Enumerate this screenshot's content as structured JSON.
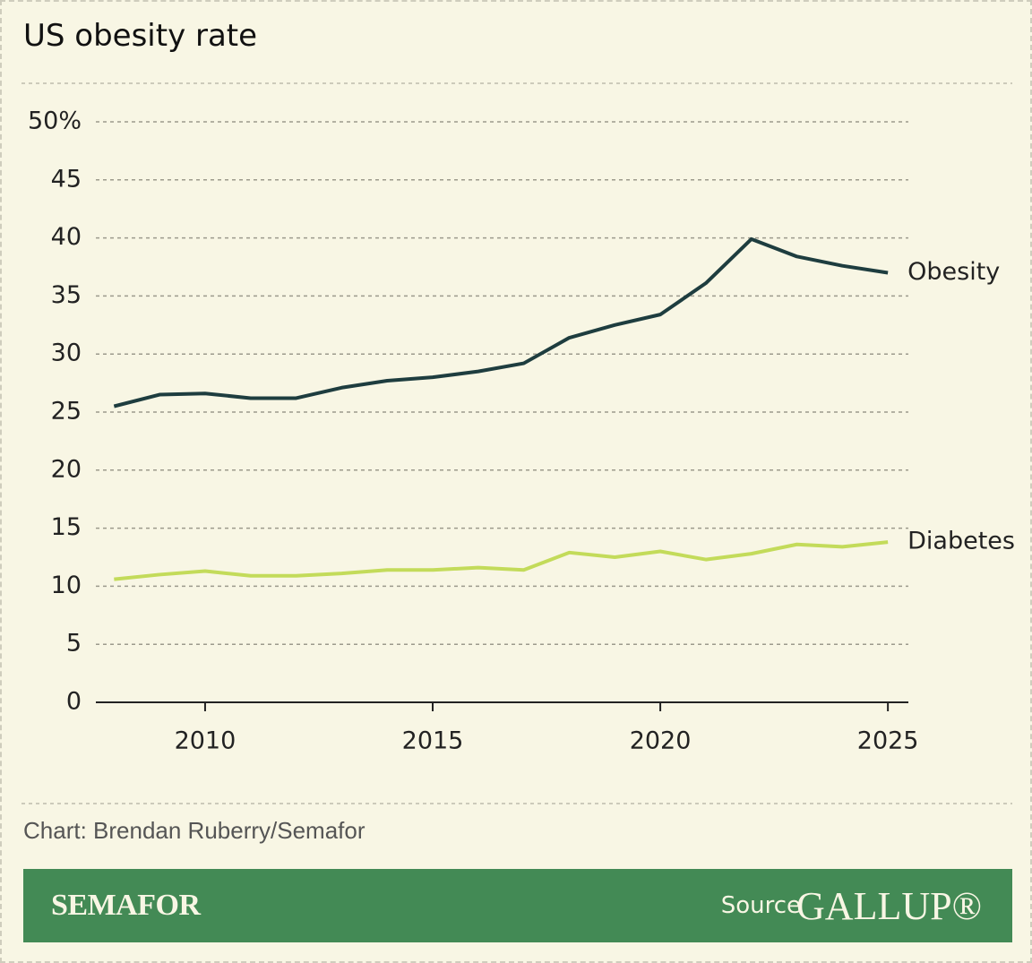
{
  "chart_data": {
    "type": "line",
    "title": "US obesity rate",
    "x": [
      2008,
      2009,
      2010,
      2011,
      2012,
      2013,
      2014,
      2015,
      2016,
      2017,
      2018,
      2019,
      2020,
      2021,
      2022,
      2023,
      2024,
      2025
    ],
    "series": [
      {
        "name": "Obesity",
        "color": "#1e3d3f",
        "values": [
          25.5,
          26.5,
          26.6,
          26.2,
          26.2,
          27.1,
          27.7,
          28.0,
          28.5,
          29.2,
          31.4,
          32.5,
          33.4,
          36.1,
          39.9,
          38.4,
          37.6,
          37.0
        ]
      },
      {
        "name": "Diabetes",
        "color": "#c3db5a",
        "values": [
          10.6,
          11.0,
          11.3,
          10.9,
          10.9,
          11.1,
          11.4,
          11.4,
          11.6,
          11.4,
          12.9,
          12.5,
          13.0,
          12.3,
          12.8,
          13.6,
          13.4,
          13.8
        ]
      }
    ],
    "xlim": [
      2007.6,
      2025.45
    ],
    "xticks": [
      2010,
      2015,
      2020,
      2025
    ],
    "ylim": [
      0,
      50
    ],
    "yticks": [
      0,
      5,
      10,
      15,
      20,
      25,
      30,
      35,
      40,
      45,
      {
        "value": 50,
        "label": "50%"
      }
    ],
    "grid": true
  },
  "credit": "Chart: Brendan Ruberry/Semafor",
  "footer": {
    "brand": "SEMAFOR",
    "source_label": "Source",
    "source": "GALLUP®"
  }
}
